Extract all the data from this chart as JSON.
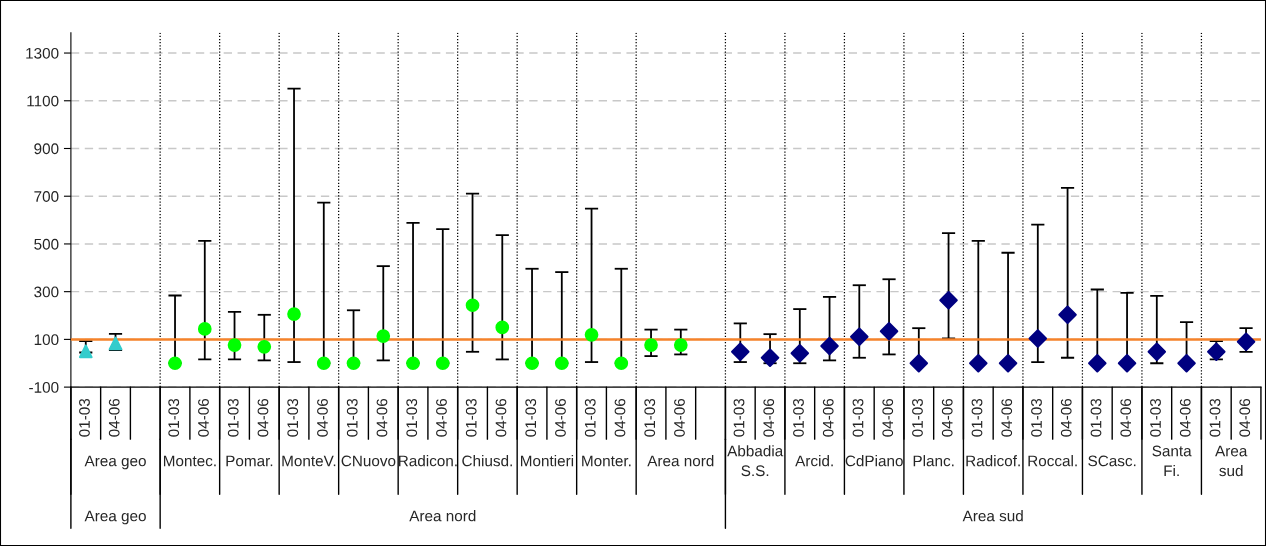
{
  "chart_data": {
    "type": "scatter",
    "categories": [
      "01-03",
      "04-06",
      null,
      "01-03",
      "04-06",
      "01-03",
      "04-06",
      "01-03",
      "04-06",
      "01-03",
      "04-06",
      "01-03",
      "04-06",
      "01-03",
      "04-06",
      "01-03",
      "04-06",
      "01-03",
      "04-06",
      "01-03",
      "04-06",
      null,
      "01-03",
      "04-06",
      "01-03",
      "04-06",
      "01-03",
      "04-06",
      "01-03",
      "04-06",
      "01-03",
      "04-06",
      "01-03",
      "04-06",
      "01-03",
      "04-06",
      "01-03",
      "04-06",
      "01-03",
      "04-06"
    ],
    "annotations": [
      "Area geo",
      "Montec.",
      "Pomar.",
      "MonteV.",
      "CNuovo",
      "Radicon.",
      "Chiusd.",
      "Montieri",
      "Monter.",
      "Area nord",
      "Abbadia\nS.S.",
      "Arcid.",
      "CdPiano",
      "Planc.",
      "Radicof.",
      "Roccal.",
      "SCasc.",
      "Santa\nFi.",
      "Area\nsud",
      "Area geo",
      "Area nord",
      "Area sud"
    ],
    "series": [
      {
        "color": "#33cccc",
        "marker": "triangle",
        "values": [
          50,
          83,
          null,
          null,
          null,
          null,
          null,
          null,
          null,
          null,
          null,
          null,
          null,
          null,
          null,
          null,
          null,
          null,
          null,
          null,
          null,
          null,
          null,
          null,
          null,
          null,
          null,
          null,
          null,
          null,
          null,
          null,
          null,
          null,
          null,
          null,
          null,
          null,
          null,
          null
        ],
        "errors": [
          [
            45,
            93
          ],
          [
            55,
            123
          ],
          null,
          null,
          null,
          null,
          null,
          null,
          null,
          null,
          null,
          null,
          null,
          null,
          null,
          null,
          null,
          null,
          null,
          null,
          null,
          null,
          null,
          null,
          null,
          null,
          null,
          null,
          null,
          null,
          null,
          null,
          null,
          null,
          null,
          null,
          null,
          null,
          null,
          null
        ]
      },
      {
        "color": "#00ff00",
        "marker": "circle",
        "values": [
          null,
          null,
          null,
          0,
          144,
          76,
          69,
          206,
          0,
          0,
          114,
          0,
          0,
          243,
          150,
          0,
          0,
          119,
          0,
          null,
          null,
          null,
          null,
          null,
          null,
          null,
          null,
          null,
          null,
          null,
          null,
          null,
          null,
          null,
          null,
          null,
          null,
          null,
          null,
          null
        ],
        "errors": [
          null,
          null,
          null,
          [
            0,
            284
          ],
          [
            16,
            513
          ],
          [
            16,
            215
          ],
          [
            12,
            203
          ],
          [
            5,
            1151
          ],
          [
            0,
            673
          ],
          [
            0,
            222
          ],
          [
            12,
            407
          ],
          [
            0,
            588
          ],
          [
            0,
            562
          ],
          [
            48,
            711
          ],
          [
            16,
            537
          ],
          [
            0,
            396
          ],
          [
            0,
            382
          ],
          [
            5,
            648
          ],
          [
            0,
            396
          ],
          null,
          null,
          null,
          null,
          null,
          null,
          null,
          null,
          null,
          null,
          null,
          null,
          null,
          null,
          null,
          null,
          null,
          null,
          null,
          null,
          null
        ]
      },
      {
        "color": "#00ff00",
        "marker": "circle",
        "values": [
          null,
          null,
          null,
          null,
          null,
          null,
          null,
          null,
          null,
          null,
          null,
          null,
          null,
          null,
          null,
          null,
          null,
          null,
          null,
          76,
          76,
          null,
          null,
          null,
          null,
          null,
          null,
          null,
          null,
          null,
          null,
          null,
          null,
          null,
          null,
          null,
          null,
          null,
          null,
          null
        ],
        "errors": [
          null,
          null,
          null,
          null,
          null,
          null,
          null,
          null,
          null,
          null,
          null,
          null,
          null,
          null,
          null,
          null,
          null,
          null,
          null,
          [
            30,
            141
          ],
          [
            37,
            141
          ],
          null,
          null,
          null,
          null,
          null,
          null,
          null,
          null,
          null,
          null,
          null,
          null,
          null,
          null,
          null,
          null,
          null,
          null,
          null
        ]
      },
      {
        "color": "#000080",
        "marker": "diamond",
        "values": [
          null,
          null,
          null,
          null,
          null,
          null,
          null,
          null,
          null,
          null,
          null,
          null,
          null,
          null,
          null,
          null,
          null,
          null,
          null,
          null,
          null,
          null,
          48,
          23,
          42,
          72,
          111,
          134,
          0,
          264,
          0,
          0,
          104,
          203,
          0,
          0,
          48,
          0,
          null,
          null
        ],
        "errors": [
          null,
          null,
          null,
          null,
          null,
          null,
          null,
          null,
          null,
          null,
          null,
          null,
          null,
          null,
          null,
          null,
          null,
          null,
          null,
          null,
          null,
          null,
          [
            5,
            167
          ],
          [
            0,
            122
          ],
          [
            0,
            227
          ],
          [
            12,
            278
          ],
          [
            23,
            327
          ],
          [
            37,
            352
          ],
          [
            0,
            147
          ],
          [
            104,
            545
          ],
          [
            0,
            513
          ],
          [
            0,
            463
          ],
          [
            5,
            581
          ],
          [
            23,
            735
          ],
          [
            0,
            309
          ],
          [
            0,
            295
          ],
          [
            0,
            282
          ],
          [
            0,
            172
          ],
          null,
          null
        ]
      },
      {
        "color": "#000080",
        "marker": "diamond",
        "values": [
          null,
          null,
          null,
          null,
          null,
          null,
          null,
          null,
          null,
          null,
          null,
          null,
          null,
          null,
          null,
          null,
          null,
          null,
          null,
          null,
          null,
          null,
          null,
          null,
          null,
          null,
          null,
          null,
          null,
          null,
          null,
          null,
          null,
          null,
          null,
          null,
          null,
          null,
          48,
          90
        ],
        "errors": [
          null,
          null,
          null,
          null,
          null,
          null,
          null,
          null,
          null,
          null,
          null,
          null,
          null,
          null,
          null,
          null,
          null,
          null,
          null,
          null,
          null,
          null,
          null,
          null,
          null,
          null,
          null,
          null,
          null,
          null,
          null,
          null,
          null,
          null,
          null,
          null,
          null,
          null,
          [
            16,
            93
          ],
          [
            48,
            147
          ]
        ]
      }
    ],
    "ylim": [
      -100,
      1385
    ],
    "yticks": [
      -100,
      100,
      300,
      500,
      700,
      900,
      1100,
      1300
    ],
    "grid": "y",
    "legend": false,
    "ref_lines": [
      {
        "axis": "y",
        "value": 100,
        "color": "#f5822a"
      }
    ]
  }
}
